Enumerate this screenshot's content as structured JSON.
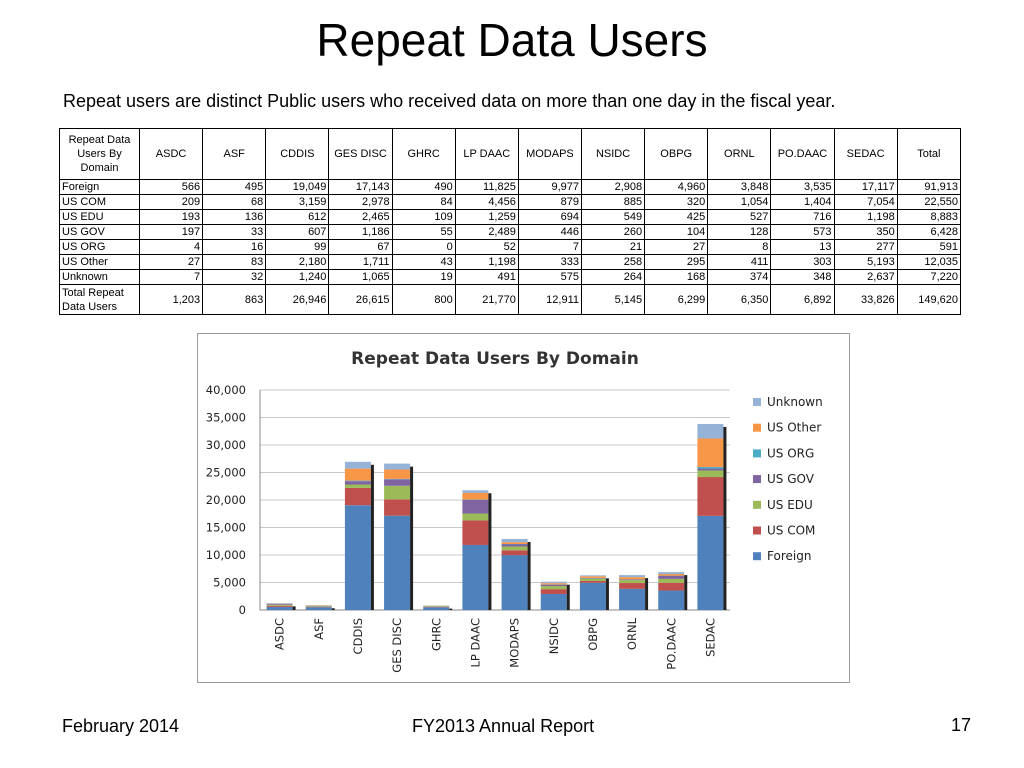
{
  "slide": {
    "title": "Repeat Data Users",
    "subtitle": "Repeat users are distinct Public users who received data on more than one day in the fiscal year.",
    "footer_left": "February 2014",
    "footer_center": "FY2013 Annual Report",
    "page_number": "17"
  },
  "table": {
    "corner": "Repeat Data Users By Domain",
    "headers": [
      "ASDC",
      "ASF",
      "CDDIS",
      "GES DISC",
      "GHRC",
      "LP DAAC",
      "MODAPS",
      "NSIDC",
      "OBPG",
      "ORNL",
      "PO.DAAC",
      "SEDAC",
      "Total"
    ],
    "rows": [
      {
        "label": "Foreign",
        "values": [
          "566",
          "495",
          "19,049",
          "17,143",
          "490",
          "11,825",
          "9,977",
          "2,908",
          "4,960",
          "3,848",
          "3,535",
          "17,117",
          "91,913"
        ]
      },
      {
        "label": "US COM",
        "values": [
          "209",
          "68",
          "3,159",
          "2,978",
          "84",
          "4,456",
          "879",
          "885",
          "320",
          "1,054",
          "1,404",
          "7,054",
          "22,550"
        ]
      },
      {
        "label": "US EDU",
        "values": [
          "193",
          "136",
          "612",
          "2,465",
          "109",
          "1,259",
          "694",
          "549",
          "425",
          "527",
          "716",
          "1,198",
          "8,883"
        ]
      },
      {
        "label": "US GOV",
        "values": [
          "197",
          "33",
          "607",
          "1,186",
          "55",
          "2,489",
          "446",
          "260",
          "104",
          "128",
          "573",
          "350",
          "6,428"
        ]
      },
      {
        "label": "US ORG",
        "values": [
          "4",
          "16",
          "99",
          "67",
          "0",
          "52",
          "7",
          "21",
          "27",
          "8",
          "13",
          "277",
          "591"
        ]
      },
      {
        "label": "US Other",
        "values": [
          "27",
          "83",
          "2,180",
          "1,711",
          "43",
          "1,198",
          "333",
          "258",
          "295",
          "411",
          "303",
          "5,193",
          "12,035"
        ]
      },
      {
        "label": "Unknown",
        "values": [
          "7",
          "32",
          "1,240",
          "1,065",
          "19",
          "491",
          "575",
          "264",
          "168",
          "374",
          "348",
          "2,637",
          "7,220"
        ]
      }
    ],
    "total": {
      "label": "Total Repeat Data Users",
      "values": [
        "1,203",
        "863",
        "26,946",
        "26,615",
        "800",
        "21,770",
        "12,911",
        "5,145",
        "6,299",
        "6,350",
        "6,892",
        "33,826",
        "149,620"
      ]
    }
  },
  "chart_data": {
    "type": "bar",
    "stacked": true,
    "title": "Repeat Data Users By Domain",
    "categories": [
      "ASDC",
      "ASF",
      "CDDIS",
      "GES DISC",
      "GHRC",
      "LP DAAC",
      "MODAPS",
      "NSIDC",
      "OBPG",
      "ORNL",
      "PO.DAAC",
      "SEDAC"
    ],
    "ylim": [
      0,
      40000
    ],
    "yticks": [
      0,
      5000,
      10000,
      15000,
      20000,
      25000,
      30000,
      35000,
      40000
    ],
    "ytick_labels": [
      "0",
      "5,000",
      "10,000",
      "15,000",
      "20,000",
      "25,000",
      "30,000",
      "35,000",
      "40,000"
    ],
    "grid": true,
    "legend_position": "right",
    "series": [
      {
        "name": "Foreign",
        "color": "#4f81bd",
        "values": [
          566,
          495,
          19049,
          17143,
          490,
          11825,
          9977,
          2908,
          4960,
          3848,
          3535,
          17117
        ]
      },
      {
        "name": "US COM",
        "color": "#c0504d",
        "values": [
          209,
          68,
          3159,
          2978,
          84,
          4456,
          879,
          885,
          320,
          1054,
          1404,
          7054
        ]
      },
      {
        "name": "US EDU",
        "color": "#9bbb59",
        "values": [
          193,
          136,
          612,
          2465,
          109,
          1259,
          694,
          549,
          425,
          527,
          716,
          1198
        ]
      },
      {
        "name": "US GOV",
        "color": "#8064a2",
        "values": [
          197,
          33,
          607,
          1186,
          55,
          2489,
          446,
          260,
          104,
          128,
          573,
          350
        ]
      },
      {
        "name": "US ORG",
        "color": "#4bacc6",
        "values": [
          4,
          16,
          99,
          67,
          0,
          52,
          7,
          21,
          27,
          8,
          13,
          277
        ]
      },
      {
        "name": "US Other",
        "color": "#f79646",
        "values": [
          27,
          83,
          2180,
          1711,
          43,
          1198,
          333,
          258,
          295,
          411,
          303,
          5193
        ]
      },
      {
        "name": "Unknown",
        "color": "#95b3d7",
        "values": [
          7,
          32,
          1240,
          1065,
          19,
          491,
          575,
          264,
          168,
          374,
          348,
          2637
        ]
      }
    ]
  }
}
